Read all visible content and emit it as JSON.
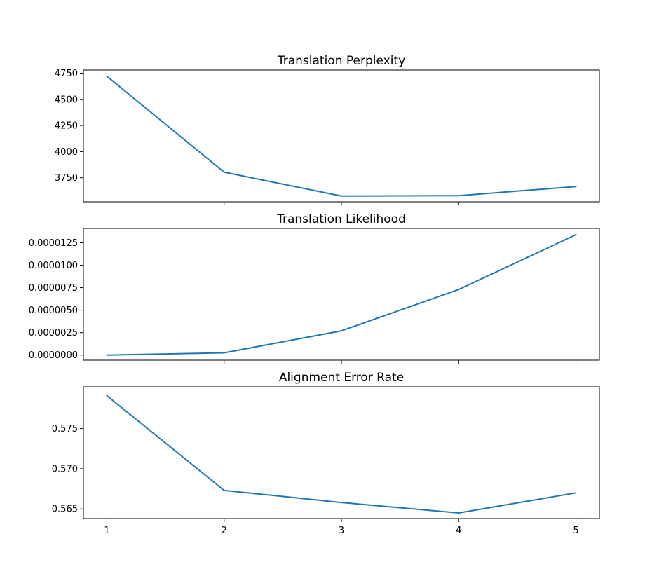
{
  "chart_data": [
    {
      "type": "line",
      "title": "Translation Perplexity",
      "xlabel": "",
      "ylabel": "",
      "x": [
        1,
        2,
        3,
        4,
        5
      ],
      "xlim": [
        0.8,
        5.2
      ],
      "ylim": [
        3520,
        4780
      ],
      "yticks": [
        3750,
        4000,
        4250,
        4500,
        4750
      ],
      "ytick_labels": [
        "3750",
        "4000",
        "4250",
        "4500",
        "4750"
      ],
      "xtick_labels": [
        "",
        "",
        "",
        "",
        ""
      ],
      "series": [
        {
          "values": [
            4721,
            3803,
            3575,
            3579,
            3666
          ],
          "color": "#1f77b4"
        }
      ],
      "grid": false,
      "legend": "none"
    },
    {
      "type": "line",
      "title": "Translation Likelihood",
      "xlabel": "",
      "ylabel": "",
      "x": [
        1,
        2,
        3,
        4,
        5
      ],
      "xlim": [
        0.8,
        5.2
      ],
      "ylim": [
        -5.7e-07,
        1.41e-05
      ],
      "yticks": [
        0.0,
        2.5e-06,
        5e-06,
        7.5e-06,
        1e-05,
        1.25e-05
      ],
      "ytick_labels": [
        "0.0000000",
        "0.0000025",
        "0.0000050",
        "0.0000075",
        "0.0000100",
        "0.0000125"
      ],
      "xtick_labels": [
        "",
        "",
        "",
        "",
        ""
      ],
      "series": [
        {
          "values": [
            0.0,
            2.5e-07,
            2.7e-06,
            7.3e-06,
            1.34e-05
          ],
          "color": "#1f77b4"
        }
      ],
      "grid": false,
      "legend": "none"
    },
    {
      "type": "line",
      "title": "Alignment Error Rate",
      "xlabel": "",
      "ylabel": "",
      "x": [
        1,
        2,
        3,
        4,
        5
      ],
      "xlim": [
        0.8,
        5.2
      ],
      "ylim": [
        0.5638,
        0.5802
      ],
      "yticks": [
        0.565,
        0.57,
        0.575
      ],
      "ytick_labels": [
        "0.565",
        "0.570",
        "0.575"
      ],
      "xtick_labels": [
        "1",
        "2",
        "3",
        "4",
        "5"
      ],
      "series": [
        {
          "values": [
            0.5791,
            0.5673,
            0.5658,
            0.5645,
            0.567
          ],
          "color": "#1f77b4"
        }
      ],
      "grid": false,
      "legend": "none"
    }
  ]
}
